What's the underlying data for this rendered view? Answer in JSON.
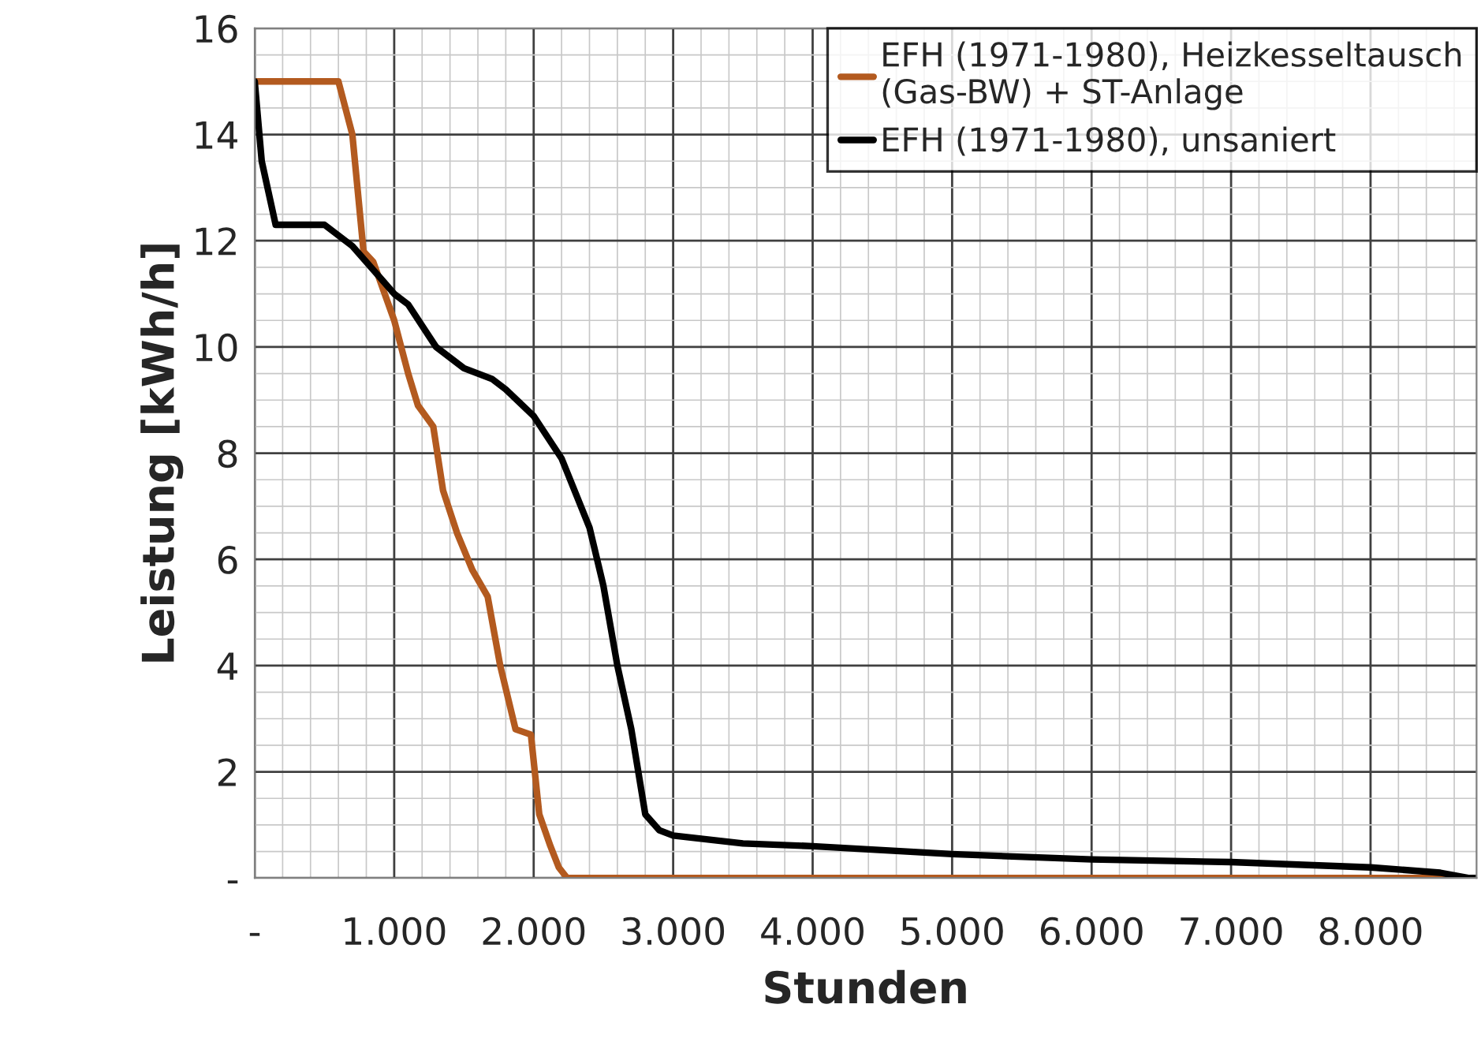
{
  "chart_data": {
    "type": "line",
    "xlabel": "Stunden",
    "ylabel": "Leistung [kWh/h]",
    "xlim": [
      0,
      8760
    ],
    "ylim": [
      0,
      16
    ],
    "xticks": [
      {
        "value": 0,
        "label": "-"
      },
      {
        "value": 1000,
        "label": "1.000"
      },
      {
        "value": 2000,
        "label": "2.000"
      },
      {
        "value": 3000,
        "label": "3.000"
      },
      {
        "value": 4000,
        "label": "4.000"
      },
      {
        "value": 5000,
        "label": "5.000"
      },
      {
        "value": 6000,
        "label": "6.000"
      },
      {
        "value": 7000,
        "label": "7.000"
      },
      {
        "value": 8000,
        "label": "8.000"
      }
    ],
    "yticks": [
      {
        "value": 0,
        "label": "-"
      },
      2,
      4,
      6,
      8,
      10,
      12,
      14,
      16
    ],
    "grid": true,
    "legend": "top right",
    "marker": "none",
    "line_style": "solid",
    "series": [
      {
        "name": "EFH (1971-1980), Heizkesseltausch\n(Gas-BW) + ST-Anlage",
        "color": "#b35a1f",
        "x": [
          0,
          600,
          700,
          780,
          850,
          1000,
          1100,
          1170,
          1280,
          1350,
          1450,
          1560,
          1670,
          1760,
          1870,
          1980,
          2040,
          2120,
          2180,
          2240,
          8760
        ],
        "values": [
          15,
          15,
          14,
          11.8,
          11.6,
          10.5,
          9.5,
          8.9,
          8.5,
          7.3,
          6.5,
          5.8,
          5.3,
          4,
          2.8,
          2.7,
          1.2,
          0.6,
          0.2,
          0,
          0
        ]
      },
      {
        "name": "EFH (1971-1980), unsaniert",
        "color": "#000000",
        "x": [
          0,
          50,
          150,
          500,
          700,
          900,
          1000,
          1100,
          1300,
          1500,
          1700,
          1800,
          2000,
          2200,
          2400,
          2500,
          2600,
          2700,
          2800,
          2900,
          3000,
          3500,
          4000,
          5000,
          6000,
          7000,
          8000,
          8500,
          8700,
          8760
        ],
        "values": [
          15,
          13.5,
          12.3,
          12.3,
          11.9,
          11.3,
          11,
          10.8,
          10,
          9.6,
          9.4,
          9.2,
          8.7,
          7.9,
          6.6,
          5.5,
          4,
          2.8,
          1.2,
          0.9,
          0.8,
          0.65,
          0.6,
          0.45,
          0.35,
          0.3,
          0.2,
          0.1,
          0,
          0
        ]
      }
    ]
  }
}
